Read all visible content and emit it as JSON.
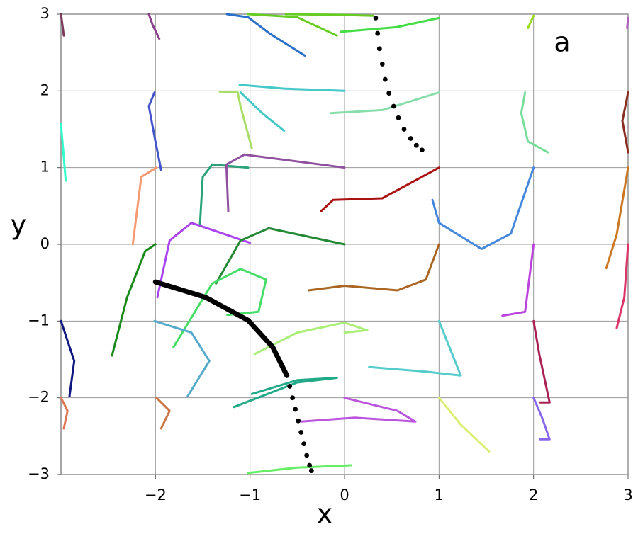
{
  "chart_data": {
    "type": "line",
    "xlabel": "x",
    "ylabel": "y",
    "annotation": "a",
    "xlim": [
      -3,
      3
    ],
    "ylim": [
      -3,
      3
    ],
    "xticks": [
      {
        "value": -2,
        "label": "−2"
      },
      {
        "value": -1,
        "label": "−1"
      },
      0,
      1,
      2,
      3
    ],
    "yticks": [
      {
        "value": -3,
        "label": "−3"
      },
      {
        "value": -2,
        "label": "−2"
      },
      {
        "value": -1,
        "label": "−1"
      },
      0,
      1,
      2,
      3
    ],
    "grid": true,
    "series": [
      {
        "color": "#7a3b5a",
        "x": [
          -3,
          -2.97
        ],
        "values": [
          3,
          2.72
        ]
      },
      {
        "color": "#8a3f8a",
        "x": [
          -2.07,
          -2.03,
          -1.96
        ],
        "values": [
          3,
          2.86,
          2.68
        ]
      },
      {
        "color": "#2a6fc9",
        "x": [
          -1.245,
          -1.02,
          -0.795,
          -0.42
        ],
        "values": [
          3,
          2.96,
          2.75,
          2.46
        ]
      },
      {
        "color": "#66cc22",
        "x": [
          -1.02,
          -0.5,
          -0.08
        ],
        "values": [
          3,
          2.96,
          2.72
        ]
      },
      {
        "color": "#66cc22",
        "x": [
          -0.62,
          0,
          0.3
        ],
        "values": [
          3,
          2.99,
          2.98
        ]
      },
      {
        "color": "#44dd44",
        "x": [
          -0.04,
          0.55,
          1.0
        ],
        "values": [
          2.77,
          2.83,
          2.95
        ]
      },
      {
        "color": "#99dd22",
        "x": [
          1.94,
          2.0
        ],
        "values": [
          2.82,
          2.98
        ]
      },
      {
        "color": "#b060c0",
        "x": [
          3,
          2.99
        ],
        "values": [
          2.95,
          2.82
        ]
      },
      {
        "color": "#4455cc",
        "x": [
          -2.01,
          -2.07,
          -2.0,
          -1.94
        ],
        "values": [
          1.98,
          1.8,
          1.34,
          0.97
        ]
      },
      {
        "color": "#44c8c8",
        "x": [
          -1.11,
          -0.64,
          0
        ],
        "values": [
          2.08,
          2.03,
          2.0
        ]
      },
      {
        "color": "#44c8c8",
        "x": [
          -1.1,
          -0.88,
          -0.64
        ],
        "values": [
          1.98,
          1.72,
          1.48
        ]
      },
      {
        "color": "#aadd66",
        "x": [
          -1.32,
          -1.13,
          -1.1,
          -0.98
        ],
        "values": [
          1.99,
          1.98,
          1.8,
          1.25
        ]
      },
      {
        "color": "#88ddaa",
        "x": [
          -0.15,
          0.4,
          1.0
        ],
        "values": [
          1.71,
          1.75,
          1.98
        ]
      },
      {
        "color": "#77dd99",
        "x": [
          1.91,
          1.87,
          1.94,
          2.15
        ],
        "values": [
          1.98,
          1.71,
          1.34,
          1.2
        ]
      },
      {
        "color": "#8b2e22",
        "x": [
          3,
          2.94,
          3
        ],
        "values": [
          1.98,
          1.61,
          1.2
        ]
      },
      {
        "color": "#33ffcc",
        "x": [
          -3,
          -2.95
        ],
        "values": [
          1.57,
          0.83
        ]
      },
      {
        "color": "#f59a70",
        "x": [
          -1.99,
          -2.15,
          -2.24
        ],
        "values": [
          1.0,
          0.88,
          0
        ]
      },
      {
        "color": "#2aa37a",
        "x": [
          -1.53,
          -1.5,
          -1.4,
          -1.02
        ],
        "values": [
          0.25,
          0.88,
          1.04,
          1.0
        ]
      },
      {
        "color": "#9050a0",
        "x": [
          -1.23,
          -1.25,
          -1.06,
          0
        ],
        "values": [
          0.43,
          1.04,
          1.17,
          1.0
        ]
      },
      {
        "color": "#aa1111",
        "x": [
          -0.25,
          -0.12,
          0.4,
          1.0
        ],
        "values": [
          0.43,
          0.58,
          0.6,
          1.0
        ]
      },
      {
        "color": "#4488dd",
        "x": [
          0.93,
          1.0,
          1.45,
          1.76,
          2.0
        ],
        "values": [
          0.58,
          0.28,
          -0.06,
          0.14,
          1.0
        ]
      },
      {
        "color": "#cc7722",
        "x": [
          2.77,
          2.88,
          3.0
        ],
        "values": [
          -0.31,
          0.13,
          1.0
        ]
      },
      {
        "color": "#aa44ee",
        "x": [
          -1.98,
          -1.85,
          -1.62,
          -1.0
        ],
        "values": [
          -0.69,
          0.05,
          0.28,
          0.02
        ]
      },
      {
        "color": "#1a8a1a",
        "x": [
          -2.46,
          -2.3,
          -2.11,
          -2.0
        ],
        "values": [
          -1.45,
          -0.69,
          -0.09,
          0
        ]
      },
      {
        "color": "#228833",
        "x": [
          -1.36,
          -1.1,
          -0.8,
          0
        ],
        "values": [
          -0.51,
          0.05,
          0.21,
          0
        ]
      },
      {
        "color": "#44dd66",
        "x": [
          -1.81,
          -1.4,
          -1.1,
          -0.83,
          -0.91,
          -1.24
        ],
        "values": [
          -1.34,
          -0.51,
          -0.32,
          -0.46,
          -0.88,
          -0.92
        ]
      },
      {
        "color": "#aa6622",
        "x": [
          -0.38,
          0,
          0.56,
          0.86,
          1.0
        ],
        "values": [
          -0.6,
          -0.54,
          -0.6,
          -0.46,
          0
        ]
      },
      {
        "color": "#bb44dd",
        "x": [
          1.67,
          1.91,
          2.0
        ],
        "values": [
          -0.93,
          -0.88,
          0
        ]
      },
      {
        "color": "#dd3366",
        "x": [
          2.88,
          2.96,
          3
        ],
        "values": [
          -1.09,
          -0.69,
          0
        ]
      },
      {
        "color": "#aaee77",
        "x": [
          -0.95,
          -0.5,
          0,
          0.24,
          0
        ],
        "values": [
          -1.43,
          -1.15,
          -1.02,
          -1.12,
          -1.15
        ]
      },
      {
        "color": "#55cccc",
        "x": [
          0.26,
          0.86,
          1.23,
          1.0
        ],
        "values": [
          -1.6,
          -1.66,
          -1.71,
          -1.0
        ]
      },
      {
        "color": "#aa2255",
        "x": [
          2.0,
          2.06,
          2.17,
          2.07
        ],
        "values": [
          -1.0,
          -1.43,
          -2.06,
          -2.06
        ]
      },
      {
        "color": "#101880",
        "x": [
          -3,
          -2.86,
          -2.91
        ],
        "values": [
          -1.0,
          -1.52,
          -1.98
        ]
      },
      {
        "color": "#55aacc",
        "x": [
          -2.01,
          -1.62,
          -1.43,
          -1.66
        ],
        "values": [
          -1.0,
          -1.15,
          -1.52,
          -1.98
        ]
      },
      {
        "color": "#22aa88",
        "x": [
          -1.17,
          -0.5,
          -0.08,
          -0.5,
          -0.98
        ],
        "values": [
          -2.12,
          -1.8,
          -1.74,
          -1.77,
          -1.95
        ]
      },
      {
        "color": "#dd7755",
        "x": [
          -3,
          -2.93,
          -2.97
        ],
        "values": [
          -2,
          -2.17,
          -2.4
        ]
      },
      {
        "color": "#cc7744",
        "x": [
          -1.99,
          -1.85,
          -1.94
        ],
        "values": [
          -2.0,
          -2.17,
          -2.4
        ]
      },
      {
        "color": "#bb55dd",
        "x": [
          -0.46,
          0.11,
          0.75,
          0.56,
          0
        ],
        "values": [
          -2.31,
          -2.26,
          -2.31,
          -2.17,
          -2.0
        ]
      },
      {
        "color": "#ddee77",
        "x": [
          1.0,
          1.23,
          1.53
        ],
        "values": [
          -2.0,
          -2.35,
          -2.7
        ]
      },
      {
        "color": "#8866ee",
        "x": [
          2.0,
          2.09,
          2.17,
          2.07
        ],
        "values": [
          -2.0,
          -2.26,
          -2.54,
          -2.54
        ]
      },
      {
        "color": "#66ee66",
        "x": [
          -1.02,
          -0.5,
          0.07
        ],
        "values": [
          -2.98,
          -2.91,
          -2.88
        ]
      },
      {
        "color": "#000000",
        "style": "thick",
        "x": [
          -2.0,
          -1.47,
          -1.02,
          -0.76,
          -0.61
        ],
        "values": [
          -0.49,
          -0.69,
          -0.99,
          -1.34,
          -1.71
        ]
      },
      {
        "color": "#000000",
        "style": "dots",
        "x": [
          -0.61,
          -0.58,
          -0.55,
          -0.52,
          -0.49,
          -0.46,
          -0.43,
          -0.4,
          -0.37,
          -0.35
        ],
        "values": [
          -1.71,
          -1.85,
          -2.0,
          -2.15,
          -2.3,
          -2.45,
          -2.6,
          -2.75,
          -2.88,
          -2.95
        ]
      },
      {
        "color": "#000000",
        "style": "dots",
        "x": [
          0.33,
          0.35,
          0.37,
          0.4,
          0.43,
          0.47,
          0.52,
          0.57,
          0.63,
          0.7,
          0.76,
          0.82
        ],
        "values": [
          2.95,
          2.75,
          2.55,
          2.35,
          2.15,
          1.97,
          1.8,
          1.65,
          1.5,
          1.38,
          1.29,
          1.23
        ]
      }
    ]
  }
}
